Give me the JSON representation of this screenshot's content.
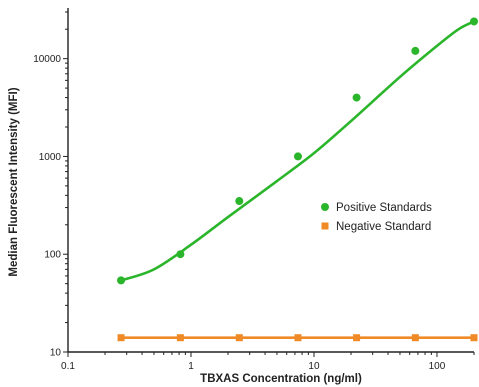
{
  "chart_data": {
    "type": "scatter",
    "xlabel": "TBXAS Concentration (ng/ml)",
    "ylabel": "Median Fluorescent Intensity (MFI)",
    "xscale": "log",
    "yscale": "log",
    "xlim": [
      0.1,
      200
    ],
    "ylim": [
      10,
      30000
    ],
    "x_ticks": [
      0.1,
      1,
      10,
      100
    ],
    "x_tick_labels": [
      "0.1",
      "1",
      "10",
      "100"
    ],
    "y_ticks": [
      10,
      100,
      1000,
      10000
    ],
    "y_tick_labels": [
      "10",
      "100",
      "1000",
      "10000"
    ],
    "grid": false,
    "legend_position": "right",
    "series": [
      {
        "name": "Positive Standards",
        "color": "#2ab52a",
        "marker": "circle",
        "fit_curve": true,
        "x": [
          0.27,
          0.82,
          2.47,
          7.41,
          22.2,
          66.7,
          200
        ],
        "y": [
          54,
          100,
          350,
          1000,
          4000,
          12000,
          24000
        ],
        "fit_x": [
          0.27,
          0.5,
          1,
          2,
          5,
          10,
          20,
          50,
          100,
          150,
          200
        ],
        "fit_y": [
          54,
          70,
          125,
          240,
          560,
          1080,
          2300,
          6500,
          13500,
          20000,
          24000
        ]
      },
      {
        "name": "Negative Standard",
        "color": "#f08a26",
        "marker": "square",
        "fit_curve": false,
        "x": [
          0.27,
          0.82,
          2.47,
          7.41,
          22.2,
          66.7,
          200
        ],
        "y": [
          14,
          14,
          14,
          14,
          14,
          14,
          14
        ]
      }
    ]
  }
}
